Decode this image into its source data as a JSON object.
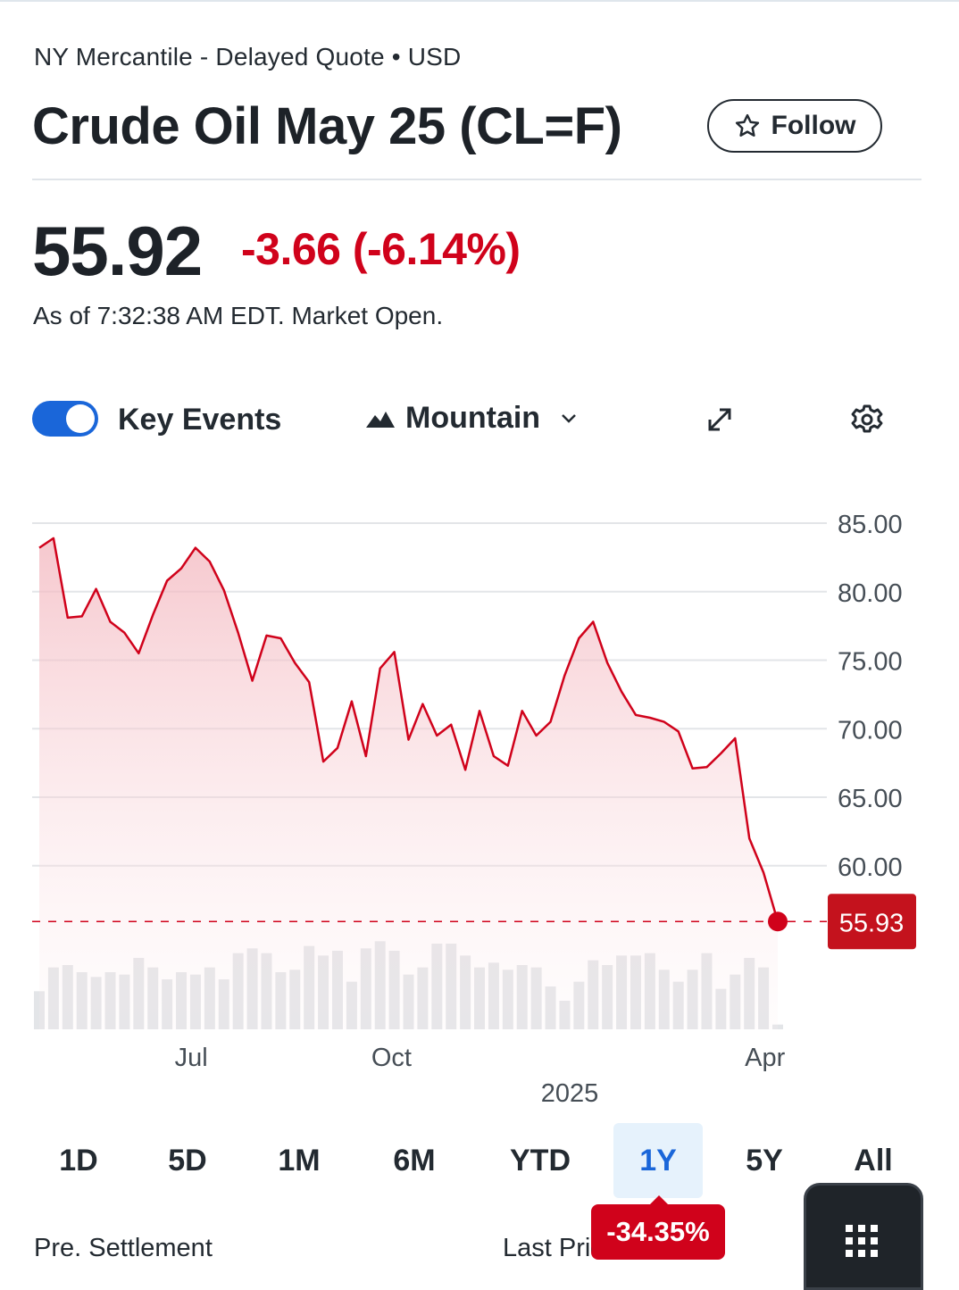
{
  "header": {
    "exchange": "NY Mercantile - Delayed Quote • USD",
    "title": "Crude Oil May 25 (CL=F)",
    "follow_label": "Follow"
  },
  "quote": {
    "price": "55.92",
    "change": "-3.66 (-6.14%)",
    "as_of": "As of 7:32:38 AM EDT. Market Open."
  },
  "controls": {
    "key_events_label": "Key Events",
    "key_events_on": true,
    "chart_type_label": "Mountain",
    "icons": [
      "expand-icon",
      "gear-icon",
      "mountain-icon",
      "chevron-down-icon"
    ]
  },
  "colors": {
    "negative": "#d0021b",
    "accent": "#1a66d9",
    "volume": "#e3e5e8",
    "grid": "#e3e5e8"
  },
  "ranges": [
    {
      "label": "1D",
      "active": false
    },
    {
      "label": "5D",
      "active": false
    },
    {
      "label": "1M",
      "active": false
    },
    {
      "label": "6M",
      "active": false
    },
    {
      "label": "YTD",
      "active": false
    },
    {
      "label": "1Y",
      "active": true
    },
    {
      "label": "5Y",
      "active": false
    },
    {
      "label": "All",
      "active": false
    }
  ],
  "performance": "-34.35%",
  "footer": {
    "pre_settlement_label": "Pre. Settlement",
    "last_price_label": "Last Price"
  },
  "chart_data": {
    "type": "area",
    "title": "",
    "xlabel": "",
    "ylabel": "",
    "ylim": [
      52.3,
      85.0
    ],
    "yticks": [
      "85.00",
      "80.00",
      "75.00",
      "70.00",
      "65.00",
      "60.00"
    ],
    "xticks": [
      {
        "label": "Jul",
        "index": 10.7
      },
      {
        "label": "Oct",
        "index": 24.8
      },
      {
        "label": "Apr",
        "index": 51.1
      }
    ],
    "year_label": "2025",
    "grid": true,
    "legend": "none",
    "last_value": "55.93",
    "reference_line": 55.93,
    "series": [
      {
        "values": [
          83.2,
          83.9,
          78.1,
          78.2,
          80.2,
          77.8,
          77.0,
          75.5,
          78.3,
          80.8,
          81.7,
          83.2,
          82.2,
          80.1,
          77.0,
          73.5,
          76.8,
          76.6,
          74.8,
          73.4,
          67.6,
          68.6,
          72.0,
          68.0,
          74.4,
          75.6,
          69.2,
          71.8,
          69.5,
          70.3,
          67.0,
          71.3,
          68.0,
          67.3,
          71.3,
          69.5,
          70.5,
          73.9,
          76.6,
          77.8,
          74.8,
          72.7,
          71.0,
          70.8,
          70.5,
          69.8,
          67.1,
          67.2,
          68.2,
          69.3,
          62.0,
          59.5,
          55.93
        ]
      }
    ],
    "volume_max": 60,
    "volume": [
      16,
      26,
      27,
      24,
      22,
      24,
      23,
      30,
      26,
      21,
      24,
      23,
      26,
      21,
      32,
      34,
      32,
      24,
      25,
      35,
      31,
      33,
      20,
      34,
      37,
      33,
      23,
      26,
      36,
      36,
      31,
      26,
      28,
      25,
      27,
      26,
      18,
      12,
      20,
      29,
      27,
      31,
      31,
      32,
      25,
      20,
      25,
      32,
      17,
      23,
      30,
      26,
      2
    ]
  }
}
